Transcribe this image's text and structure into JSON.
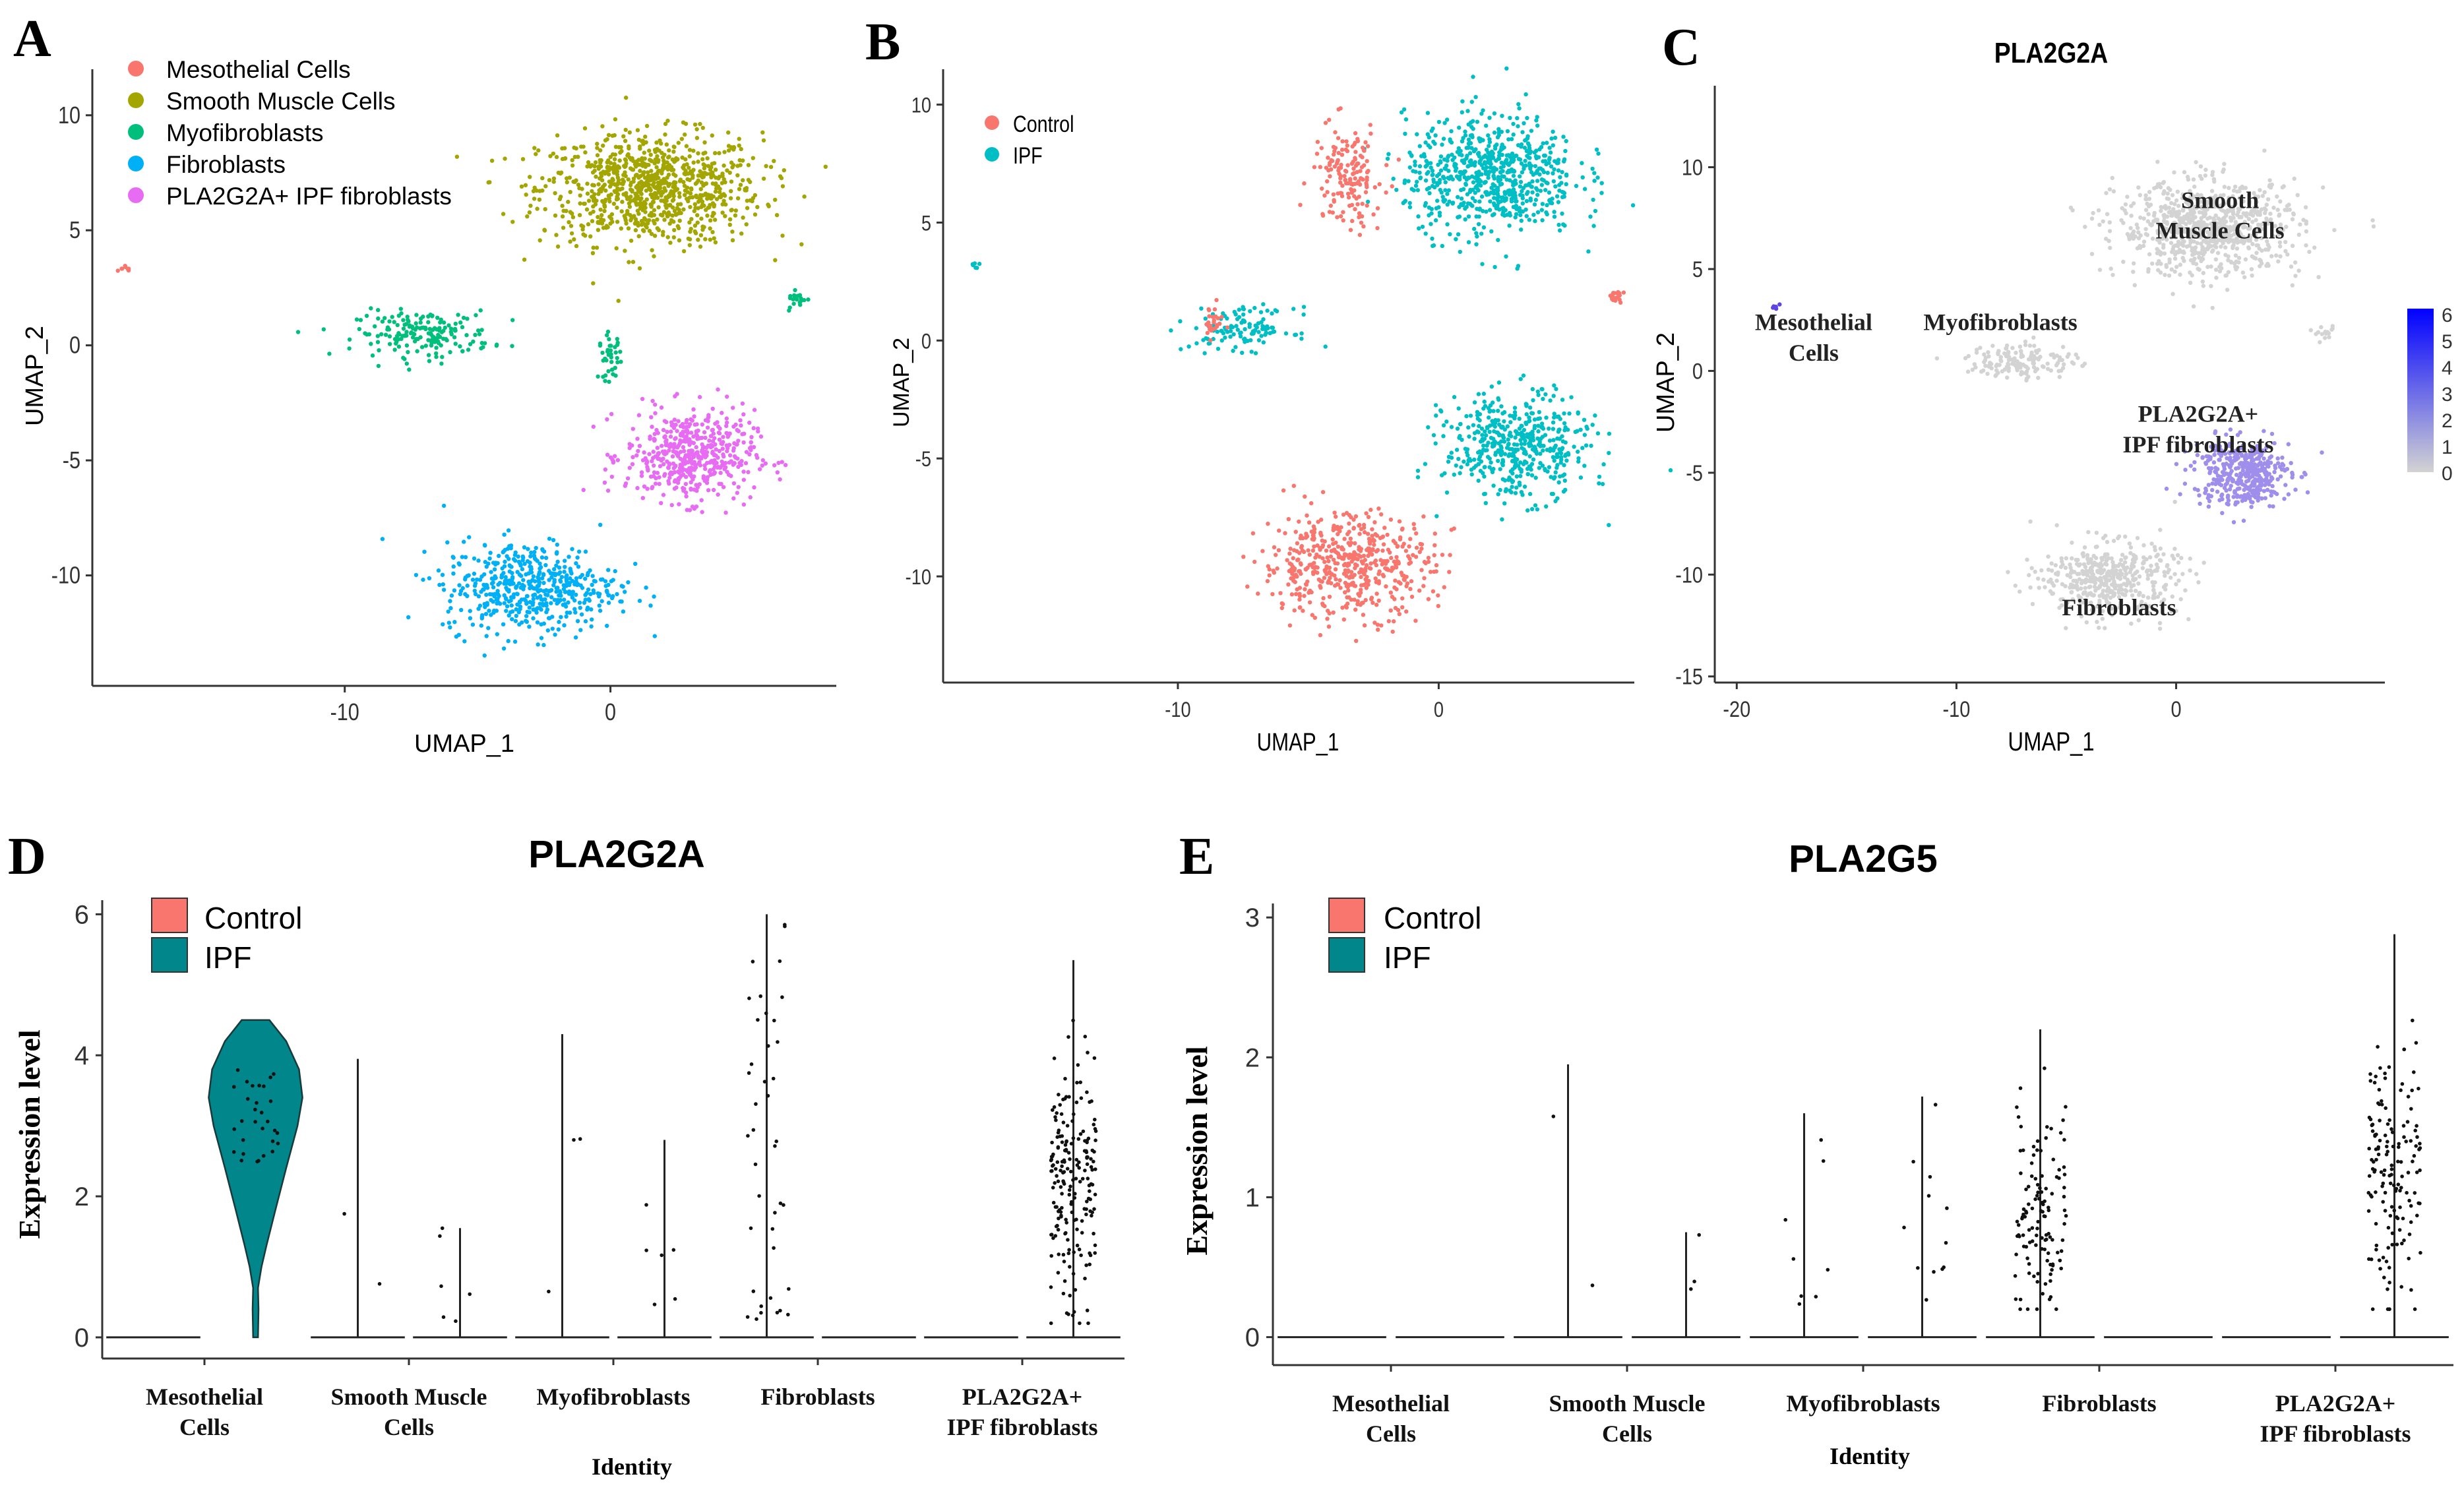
{
  "panels": {
    "A": {
      "letter": "A",
      "chart_data": {
        "type": "scatter",
        "title": "",
        "xlabel": "UMAP_1",
        "ylabel": "UMAP_2",
        "xlim": [
          -19.5,
          8.5
        ],
        "ylim": [
          -14.8,
          12
        ],
        "xticks": [
          -10,
          0
        ],
        "yticks": [
          10,
          5,
          0,
          -5,
          -10
        ],
        "legend": [
          {
            "name": "Mesothelial Cells",
            "color": "#F8766D"
          },
          {
            "name": "Smooth Muscle Cells",
            "color": "#A3A500"
          },
          {
            "name": "Myofibroblasts",
            "color": "#00BF7D"
          },
          {
            "name": "Fibroblasts",
            "color": "#00B0F6"
          },
          {
            "name": "PLA2G2A+ IPF fibroblasts",
            "color": "#E76BF3"
          }
        ],
        "clusters": [
          {
            "label": "Mesothelial Cells",
            "center": [
              -18.2,
              3.3
            ],
            "spread": [
              0.3,
              0.2
            ],
            "n": 8
          },
          {
            "label": "Smooth Muscle Cells",
            "center": [
              1.5,
              6.8
            ],
            "spread": [
              3.8,
              2.2
            ],
            "n": 900
          },
          {
            "label": "Myofibroblasts",
            "center": [
              -7.0,
              0.5
            ],
            "spread": [
              2.3,
              0.9
            ],
            "n": 180
          },
          {
            "label": "Myofibroblasts",
            "center": [
              0.0,
              -0.5
            ],
            "spread": [
              0.4,
              0.9
            ],
            "n": 40
          },
          {
            "label": "Myofibroblasts",
            "center": [
              7.0,
              2.0
            ],
            "spread": [
              0.4,
              0.3
            ],
            "n": 20
          },
          {
            "label": "PLA2G2A+ IPF fibroblasts",
            "center": [
              3.0,
              -4.8
            ],
            "spread": [
              2.2,
              1.8
            ],
            "n": 500
          },
          {
            "label": "Fibroblasts",
            "center": [
              -3.0,
              -10.5
            ],
            "spread": [
              3.0,
              1.8
            ],
            "n": 520
          }
        ]
      }
    },
    "B": {
      "letter": "B",
      "chart_data": {
        "type": "scatter",
        "title": "",
        "xlabel": "UMAP_1",
        "ylabel": "UMAP_2",
        "xlim": [
          -19,
          7.5
        ],
        "ylim": [
          -14.5,
          11.5
        ],
        "xticks": [
          -10,
          0
        ],
        "yticks": [
          10,
          5,
          0,
          -5,
          -10
        ],
        "legend": [
          {
            "name": "Control",
            "color": "#F8766D"
          },
          {
            "name": "IPF",
            "color": "#00BFC4"
          }
        ],
        "clusters": [
          {
            "label": "IPF",
            "center": [
              -17.8,
              3.2
            ],
            "spread": [
              0.2,
              0.2
            ],
            "n": 6
          },
          {
            "label": "IPF",
            "center": [
              2.0,
              7.0
            ],
            "spread": [
              3.0,
              2.3
            ],
            "n": 700
          },
          {
            "label": "Control",
            "center": [
              -3.5,
              7.0
            ],
            "spread": [
              1.2,
              2.0
            ],
            "n": 160
          },
          {
            "label": "IPF",
            "center": [
              -7.5,
              0.5
            ],
            "spread": [
              1.8,
              0.8
            ],
            "n": 120
          },
          {
            "label": "Control",
            "center": [
              -8.7,
              0.8
            ],
            "spread": [
              0.4,
              0.6
            ],
            "n": 25
          },
          {
            "label": "Control",
            "center": [
              6.8,
              1.8
            ],
            "spread": [
              0.3,
              0.3
            ],
            "n": 18
          },
          {
            "label": "IPF",
            "center": [
              3.0,
              -4.5
            ],
            "spread": [
              2.5,
              2.0
            ],
            "n": 480
          },
          {
            "label": "Control",
            "center": [
              -3.5,
              -9.5
            ],
            "spread": [
              3.0,
              2.0
            ],
            "n": 520
          }
        ]
      }
    },
    "C": {
      "letter": "C",
      "chart_data": {
        "type": "scatter",
        "title": "PLA2G2A",
        "xlabel": "UMAP_1",
        "ylabel": "UMAP_2",
        "xlim": [
          -21,
          9.5
        ],
        "ylim": [
          -15.3,
          14
        ],
        "xticks": [
          -20,
          -10,
          0
        ],
        "yticks": [
          10,
          5,
          0,
          -5,
          -10,
          -15
        ],
        "colorbar": {
          "min": 0,
          "max": 6,
          "ticks": [
            "6",
            "5",
            "4",
            "3",
            "2",
            "1",
            "0"
          ],
          "low_color": "#d3d3d3",
          "high_color": "#0000ff"
        },
        "annotations": [
          {
            "text": "Smooth",
            "x": 2,
            "y": 8
          },
          {
            "text": "Muscle Cells",
            "x": 2,
            "y": 6.5
          },
          {
            "text": "Mesothelial",
            "x": -16.5,
            "y": 2
          },
          {
            "text": "Cells",
            "x": -16.5,
            "y": 0.5
          },
          {
            "text": "Myofibroblasts",
            "x": -8,
            "y": 2
          },
          {
            "text": "PLA2G2A+",
            "x": 1,
            "y": -2.5
          },
          {
            "text": "IPF fibroblasts",
            "x": 1,
            "y": -4
          },
          {
            "text": "Fibroblasts",
            "x": -2.6,
            "y": -12
          }
        ],
        "clusters": [
          {
            "center": [
              -18.2,
              3.1
            ],
            "spread": [
              0.2,
              0.2
            ],
            "n": 6,
            "expr": 5
          },
          {
            "center": [
              1.5,
              7.0
            ],
            "spread": [
              3.8,
              2.1
            ],
            "n": 800,
            "expr": 0
          },
          {
            "center": [
              -7.0,
              0.5
            ],
            "spread": [
              2.3,
              0.8
            ],
            "n": 150,
            "expr": 0
          },
          {
            "center": [
              6.8,
              1.8
            ],
            "spread": [
              0.4,
              0.3
            ],
            "n": 15,
            "expr": 0
          },
          {
            "center": [
              3.0,
              -5.0
            ],
            "spread": [
              2.0,
              1.5
            ],
            "n": 400,
            "expr": 2
          },
          {
            "center": [
              -3.0,
              -10.2
            ],
            "spread": [
              2.8,
              1.6
            ],
            "n": 450,
            "expr": 0
          }
        ]
      }
    },
    "D": {
      "letter": "D",
      "chart_data": {
        "type": "violin",
        "title": "PLA2G2A",
        "xlabel": "Identity",
        "ylabel": "Expression level",
        "ylim": [
          -0.3,
          6.2
        ],
        "yticks": [
          0,
          2,
          4,
          6
        ],
        "legend": [
          {
            "name": "Control",
            "color": "#F8766D"
          },
          {
            "name": "IPF",
            "color": "#00868B"
          }
        ],
        "categories": [
          {
            "line1": "Mesothelial",
            "line2": "Cells"
          },
          {
            "line1": "Smooth Muscle",
            "line2": "Cells"
          },
          {
            "line1": "Myofibroblasts",
            "line2": ""
          },
          {
            "line1": "Fibroblasts",
            "line2": ""
          },
          {
            "line1": "PLA2G2A+",
            "line2": "IPF fibroblasts"
          }
        ],
        "series": [
          {
            "name": "Control",
            "max_values": [
              0,
              3.95,
              4.3,
              6.0,
              0.05
            ],
            "n_points": [
              0,
              2,
              3,
              40,
              0
            ]
          },
          {
            "name": "IPF",
            "max_values": [
              4.5,
              1.55,
              2.8,
              0.0,
              5.35
            ],
            "n_points": [
              30,
              6,
              6,
              0,
              200
            ]
          }
        ]
      }
    },
    "E": {
      "letter": "E",
      "chart_data": {
        "type": "violin",
        "title": "PLA2G5",
        "xlabel": "Identity",
        "ylabel": "Expression level",
        "ylim": [
          -0.2,
          3.1
        ],
        "yticks": [
          0,
          1,
          2,
          3
        ],
        "legend": [
          {
            "name": "Control",
            "color": "#F8766D"
          },
          {
            "name": "IPF",
            "color": "#00868B"
          }
        ],
        "categories": [
          {
            "line1": "Mesothelial",
            "line2": "Cells"
          },
          {
            "line1": "Smooth Muscle",
            "line2": "Cells"
          },
          {
            "line1": "Myofibroblasts",
            "line2": ""
          },
          {
            "line1": "Fibroblasts",
            "line2": ""
          },
          {
            "line1": "PLA2G2A+",
            "line2": "IPF fibroblasts"
          }
        ],
        "series": [
          {
            "name": "Control",
            "max_values": [
              0,
              1.95,
              1.6,
              2.2,
              0.0
            ],
            "n_points": [
              0,
              2,
              8,
              120,
              0
            ]
          },
          {
            "name": "IPF",
            "max_values": [
              0,
              0.75,
              1.72,
              0.0,
              2.88
            ],
            "n_points": [
              0,
              3,
              12,
              0,
              150
            ]
          }
        ]
      }
    }
  }
}
